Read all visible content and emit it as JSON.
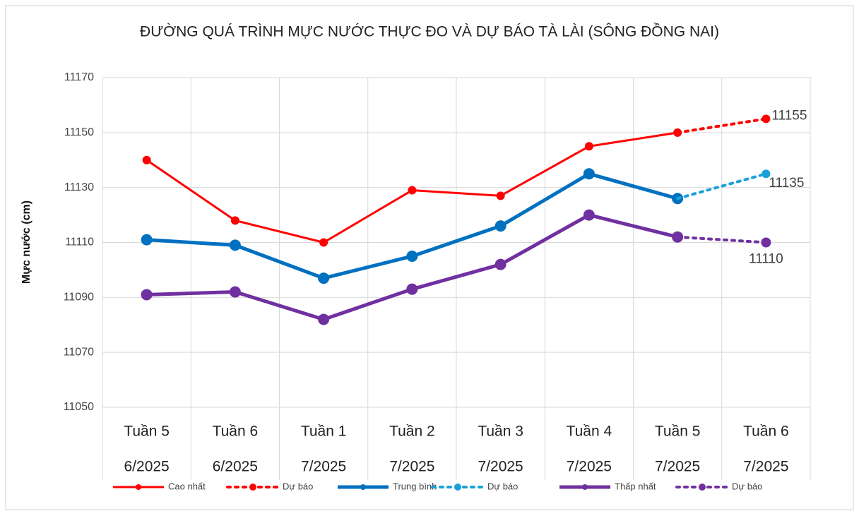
{
  "chart_data": {
    "type": "line",
    "title": "ĐƯỜNG QUÁ TRÌNH MỰC NƯỚC THỰC ĐO VÀ DỰ BÁO TÀ LÀI (SÔNG ĐỒNG NAI)",
    "y_label": "Mực nước (cm)",
    "categories": [
      [
        "Tuần 5",
        "6/2025"
      ],
      [
        "Tuần 6",
        "6/2025"
      ],
      [
        "Tuần 1",
        "7/2025"
      ],
      [
        "Tuần 2",
        "7/2025"
      ],
      [
        "Tuần 3",
        "7/2025"
      ],
      [
        "Tuần 4",
        "7/2025"
      ],
      [
        "Tuần 5",
        "7/2025"
      ],
      [
        "Tuần 6",
        "7/2025"
      ]
    ],
    "series": [
      {
        "name": "Cao nhất",
        "color": "#ff0000",
        "dashed": false,
        "values": [
          11140,
          11118,
          11110,
          11129,
          11127,
          11145,
          11150,
          null
        ]
      },
      {
        "name": "Dự báo",
        "color": "#ff0000",
        "dashed": true,
        "data_labels": true,
        "values": [
          null,
          null,
          null,
          null,
          null,
          null,
          11150,
          11155
        ]
      },
      {
        "name": "Trung bình",
        "color": "#0070c0",
        "dashed": false,
        "values": [
          11111,
          11109,
          11097,
          11105,
          11116,
          11135,
          11126,
          null
        ]
      },
      {
        "name": "Dự báo",
        "color": "#19a0dc",
        "dashed": true,
        "data_labels": true,
        "values": [
          null,
          null,
          null,
          null,
          null,
          null,
          11126,
          11135
        ]
      },
      {
        "name": "Thấp nhất",
        "color": "#7030a0",
        "dashed": false,
        "values": [
          11091,
          11092,
          11082,
          11093,
          11102,
          11120,
          11112,
          null
        ]
      },
      {
        "name": "Dự báo",
        "color": "#7030a0",
        "dashed": true,
        "data_labels": true,
        "values": [
          null,
          null,
          null,
          null,
          null,
          null,
          11112,
          11110
        ]
      }
    ],
    "ylim": [
      11050,
      11170
    ],
    "yticks": [
      11050,
      11070,
      11090,
      11110,
      11130,
      11150,
      11170
    ],
    "grid": true,
    "legend": "bottom"
  }
}
